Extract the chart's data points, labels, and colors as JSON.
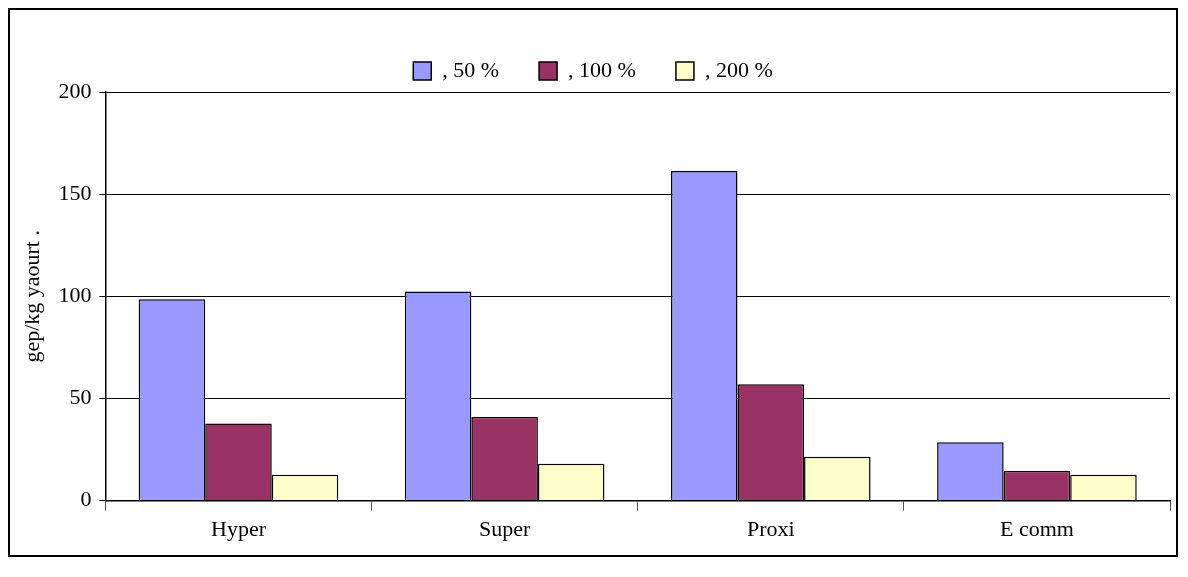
{
  "chart_data": {
    "type": "bar",
    "ylabel": "gep/kg yaourt .",
    "categories": [
      "Hyper",
      "Super",
      "Proxi",
      "E comm"
    ],
    "series": [
      {
        "name": ", 50 %",
        "color": "#9999ff",
        "values": [
          98.5,
          102.4,
          161.3,
          28.6
        ]
      },
      {
        "name": ", 100 %",
        "color": "#993366",
        "values": [
          37.8,
          40.9,
          57,
          14.5
        ]
      },
      {
        "name": ", 200 %",
        "color": "#ffffcc",
        "values": [
          12.7,
          18,
          21.5,
          12.7
        ]
      }
    ],
    "ylim": [
      0,
      200
    ],
    "yticks": [
      0,
      50,
      100,
      150,
      200
    ],
    "grid": "y",
    "legend": "top"
  }
}
